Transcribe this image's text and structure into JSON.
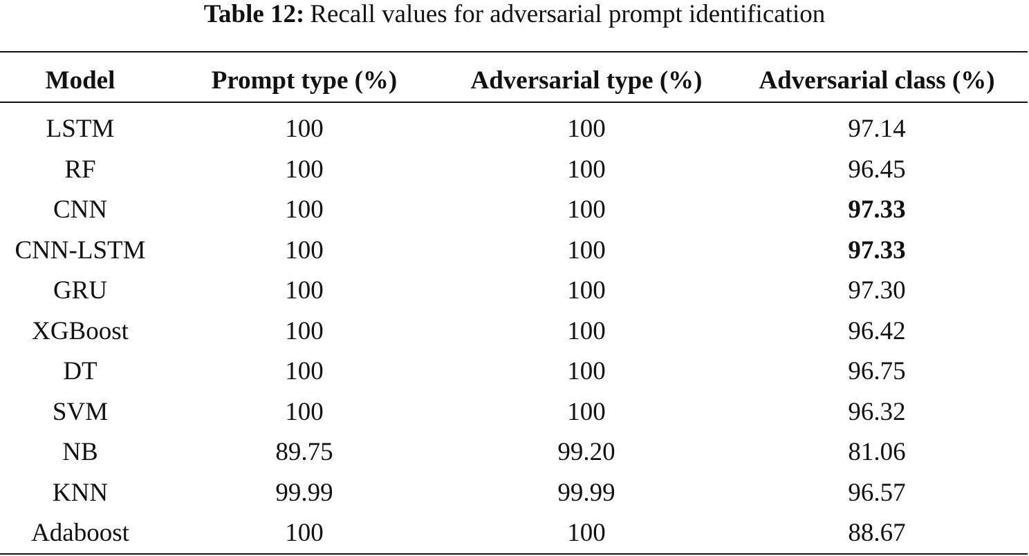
{
  "caption": {
    "label": "Table 12:",
    "text": "Recall values for adversarial prompt identification"
  },
  "table": {
    "headers": [
      "Model",
      "Prompt type (%)",
      "Adversarial type (%)",
      "Adversarial class (%)"
    ],
    "rows": [
      {
        "model": "LSTM",
        "prompt_type": "100",
        "adversarial_type": "100",
        "adversarial_class": "97.14",
        "class_bold": false
      },
      {
        "model": "RF",
        "prompt_type": "100",
        "adversarial_type": "100",
        "adversarial_class": "96.45",
        "class_bold": false
      },
      {
        "model": "CNN",
        "prompt_type": "100",
        "adversarial_type": "100",
        "adversarial_class": "97.33",
        "class_bold": true
      },
      {
        "model": "CNN-LSTM",
        "prompt_type": "100",
        "adversarial_type": "100",
        "adversarial_class": "97.33",
        "class_bold": true
      },
      {
        "model": "GRU",
        "prompt_type": "100",
        "adversarial_type": "100",
        "adversarial_class": "97.30",
        "class_bold": false
      },
      {
        "model": "XGBoost",
        "prompt_type": "100",
        "adversarial_type": "100",
        "adversarial_class": "96.42",
        "class_bold": false
      },
      {
        "model": "DT",
        "prompt_type": "100",
        "adversarial_type": "100",
        "adversarial_class": "96.75",
        "class_bold": false
      },
      {
        "model": "SVM",
        "prompt_type": "100",
        "adversarial_type": "100",
        "adversarial_class": "96.32",
        "class_bold": false
      },
      {
        "model": "NB",
        "prompt_type": "89.75",
        "adversarial_type": "99.20",
        "adversarial_class": "81.06",
        "class_bold": false
      },
      {
        "model": "KNN",
        "prompt_type": "99.99",
        "adversarial_type": "99.99",
        "adversarial_class": "96.57",
        "class_bold": false
      },
      {
        "model": "Adaboost",
        "prompt_type": "100",
        "adversarial_type": "100",
        "adversarial_class": "88.67",
        "class_bold": false
      }
    ]
  }
}
